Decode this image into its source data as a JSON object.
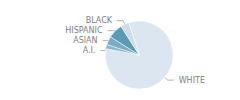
{
  "chart_data": {
    "type": "pie",
    "categories": [
      "WHITE",
      "A.I.",
      "ASIAN",
      "HISPANIC",
      "BLACK"
    ],
    "values": [
      83,
      2,
      4,
      7,
      4
    ],
    "colors": [
      "#dce6f0",
      "#8db4c8",
      "#7bacc4",
      "#5b9ab5",
      "#ccdce8"
    ]
  }
}
